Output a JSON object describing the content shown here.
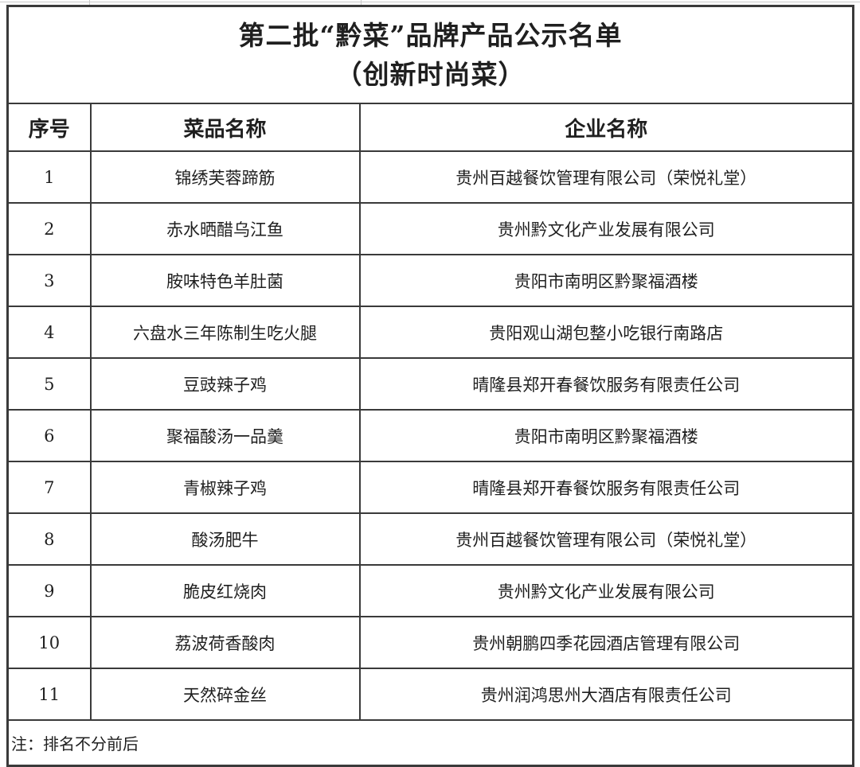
{
  "colors": {
    "table_border": "#3a3a3a",
    "text": "#1f1f1f",
    "faint_gridline": "#c9c9c9",
    "background": "#ffffff"
  },
  "table": {
    "title_line1": "第二批“黔菜”品牌产品公示名单",
    "title_line2": "（创新时尚菜）",
    "columns": [
      "序号",
      "菜品名称",
      "企业名称"
    ],
    "rows": [
      {
        "no": "1",
        "dish": "锦绣芙蓉蹄筋",
        "company": "贵州百越餐饮管理有限公司（荣悦礼堂）"
      },
      {
        "no": "2",
        "dish": "赤水晒醋乌江鱼",
        "company": "贵州黔文化产业发展有限公司"
      },
      {
        "no": "3",
        "dish": "胺味特色羊肚菌",
        "company": "贵阳市南明区黔聚福酒楼"
      },
      {
        "no": "4",
        "dish": "六盘水三年陈制生吃火腿",
        "company": "贵阳观山湖包整小吃银行南路店"
      },
      {
        "no": "5",
        "dish": "豆豉辣子鸡",
        "company": "晴隆县郑开春餐饮服务有限责任公司"
      },
      {
        "no": "6",
        "dish": "聚福酸汤一品羹",
        "company": "贵阳市南明区黔聚福酒楼"
      },
      {
        "no": "7",
        "dish": "青椒辣子鸡",
        "company": "晴隆县郑开春餐饮服务有限责任公司"
      },
      {
        "no": "8",
        "dish": "酸汤肥牛",
        "company": "贵州百越餐饮管理有限公司（荣悦礼堂）"
      },
      {
        "no": "9",
        "dish": "脆皮红烧肉",
        "company": "贵州黔文化产业发展有限公司"
      },
      {
        "no": "10",
        "dish": "荔波荷香酸肉",
        "company": "贵州朝鹏四季花园酒店管理有限公司"
      },
      {
        "no": "11",
        "dish": "天然碎金丝",
        "company": "贵州润鸿思州大酒店有限责任公司"
      }
    ],
    "note": "注：排名不分前后"
  }
}
